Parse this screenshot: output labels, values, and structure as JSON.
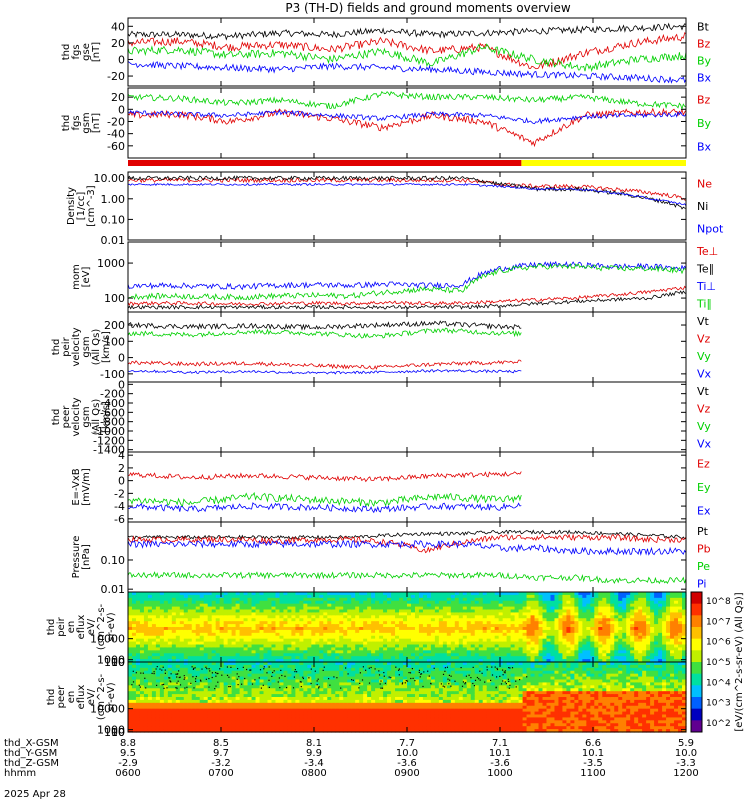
{
  "title": "P3 (TH-D) fields and ground moments overview",
  "colors": {
    "black": "#000000",
    "red": "#e00000",
    "green": "#00d000",
    "blue": "#0000ff",
    "yellow": "#ffff00",
    "barred": "#e00000"
  },
  "chart_data": [
    {
      "id": "fgs_gse",
      "type": "line",
      "ylabel": [
        "thd",
        "fgs",
        "gse",
        "[nT]"
      ],
      "ylim": [
        -32,
        50
      ],
      "ticks": [
        "40",
        "20",
        "0",
        "-20"
      ],
      "tickvals": [
        40,
        20,
        0,
        -20
      ],
      "series": [
        {
          "name": "Bt",
          "color": "black",
          "base": [
            30,
            30,
            28,
            32,
            30,
            35,
            30,
            32,
            34,
            36,
            38,
            40
          ],
          "noise": 4
        },
        {
          "name": "Bz",
          "color": "red",
          "base": [
            20,
            22,
            15,
            18,
            12,
            22,
            10,
            15,
            -10,
            8,
            20,
            28
          ],
          "noise": 5
        },
        {
          "name": "By",
          "color": "green",
          "base": [
            10,
            12,
            5,
            8,
            0,
            10,
            -5,
            15,
            0,
            -10,
            0,
            5
          ],
          "noise": 5
        },
        {
          "name": "Bx",
          "color": "blue",
          "base": [
            -5,
            -8,
            -10,
            -12,
            -8,
            -10,
            -12,
            -15,
            -18,
            -20,
            -22,
            -25
          ],
          "noise": 4
        }
      ]
    },
    {
      "id": "fgs_gsm",
      "type": "line",
      "ylabel": [
        "thd",
        "fgs",
        "gsm",
        "[nT]"
      ],
      "ylim": [
        -80,
        35
      ],
      "ticks": [
        "20",
        "0",
        "-20",
        "-40",
        "-60"
      ],
      "tickvals": [
        20,
        0,
        -20,
        -40,
        -60
      ],
      "series": [
        {
          "name": "Bz",
          "color": "red",
          "base": [
            -10,
            -8,
            -20,
            -5,
            -15,
            -30,
            -10,
            -20,
            -55,
            -10,
            -5,
            -5
          ],
          "noise": 6
        },
        {
          "name": "By",
          "color": "green",
          "base": [
            20,
            18,
            10,
            15,
            5,
            25,
            20,
            20,
            15,
            20,
            10,
            5
          ],
          "noise": 5
        },
        {
          "name": "Bx",
          "color": "blue",
          "base": [
            -5,
            -8,
            -10,
            -5,
            -10,
            -15,
            -8,
            -10,
            -20,
            -12,
            -10,
            -8
          ],
          "noise": 4
        }
      ]
    },
    {
      "id": "density",
      "type": "line",
      "log": true,
      "ylabel": [
        "Density",
        "[1/cc]",
        "[cm^-3]"
      ],
      "ylim": [
        0.01,
        20
      ],
      "ticks": [
        "10.00",
        "1.00",
        "0.10",
        "0.01"
      ],
      "tickvals": [
        10,
        1,
        0.1,
        0.01
      ],
      "series": [
        {
          "name": "Ne",
          "color": "red",
          "base": [
            8,
            8,
            8,
            8,
            8,
            8,
            8,
            8,
            8,
            8,
            5,
            4,
            4,
            3,
            2,
            1
          ],
          "noise": 0.1
        },
        {
          "name": "Ni",
          "color": "black",
          "base": [
            10,
            10,
            10,
            10,
            10,
            10,
            10,
            10,
            10,
            10,
            5,
            3,
            3,
            2,
            1,
            0.3
          ],
          "noise": 0.1
        },
        {
          "name": "Npot",
          "color": "blue",
          "base": [
            5,
            5,
            5,
            5,
            5,
            5,
            5,
            5,
            5,
            5,
            4,
            3,
            3,
            2,
            1,
            0.5
          ],
          "noise": 0.05
        }
      ]
    },
    {
      "id": "temp",
      "type": "line",
      "log": true,
      "ylabel": [
        "mom",
        "[eV]"
      ],
      "ylim": [
        40,
        4000
      ],
      "ticks": [
        "1000",
        "100"
      ],
      "tickvals": [
        1000,
        100
      ],
      "series": [
        {
          "name": "Te⊥",
          "color": "red",
          "base": [
            70,
            72,
            70,
            68,
            70,
            72,
            70,
            75,
            70,
            72,
            80,
            90,
            100,
            120,
            150,
            200
          ],
          "noise": 0.05
        },
        {
          "name": "Te∥",
          "color": "black",
          "base": [
            55,
            55,
            55,
            55,
            55,
            55,
            55,
            55,
            55,
            55,
            60,
            70,
            80,
            90,
            100,
            150
          ],
          "noise": 0.05
        },
        {
          "name": "Ti⊥",
          "color": "blue",
          "base": [
            220,
            230,
            220,
            210,
            230,
            240,
            230,
            250,
            230,
            240,
            700,
            900,
            900,
            800,
            800,
            700
          ],
          "noise": 0.08
        },
        {
          "name": "Ti∥",
          "color": "green",
          "base": [
            110,
            115,
            110,
            105,
            115,
            120,
            115,
            150,
            180,
            160,
            600,
            800,
            800,
            700,
            700,
            600
          ],
          "noise": 0.08
        }
      ]
    },
    {
      "id": "peir_v",
      "type": "line",
      "ylabel": [
        "thd",
        "peir",
        "velocity",
        "gsm",
        "(All Qs)",
        "[km/s]"
      ],
      "ylim": [
        -150,
        280
      ],
      "ticks": [
        "200",
        "100",
        "0",
        "-100"
      ],
      "tickvals": [
        200,
        100,
        0,
        -100
      ],
      "series": [
        {
          "name": "Vt",
          "color": "black",
          "base": [
            200,
            190,
            195,
            185,
            200,
            210,
            190,
            180,
            200,
            210
          ],
          "noise": 15
        },
        {
          "name": "Vz",
          "color": "red",
          "base": [
            -30,
            -40,
            -35,
            -50,
            -60,
            -40,
            -30,
            -20,
            20,
            -20
          ],
          "noise": 12
        },
        {
          "name": "Vy",
          "color": "green",
          "base": [
            150,
            140,
            160,
            150,
            130,
            170,
            150,
            140,
            120,
            130
          ],
          "noise": 15
        },
        {
          "name": "Vx",
          "color": "blue",
          "base": [
            -80,
            -90,
            -85,
            -95,
            -90,
            -80,
            -85,
            -90,
            -100,
            -95
          ],
          "noise": 8
        }
      ]
    },
    {
      "id": "peer_v",
      "type": "line",
      "ylabel": [
        "thd",
        "peer",
        "velocity",
        "gsm",
        "(All Qs)",
        "[km/s]"
      ],
      "ylim": [
        -1450,
        50
      ],
      "ticks": [
        "0",
        "-200",
        "-400",
        "-600",
        "-800",
        "-1000",
        "-1200",
        "-1400"
      ],
      "tickvals": [
        0,
        -200,
        -400,
        -600,
        -800,
        -1000,
        -1200,
        -1400
      ],
      "series": [
        {
          "name": "Vt",
          "color": "black"
        },
        {
          "name": "Vz",
          "color": "red"
        },
        {
          "name": "Vy",
          "color": "green"
        },
        {
          "name": "Vx",
          "color": "blue"
        }
      ]
    },
    {
      "id": "efield",
      "type": "line",
      "ylabel": [
        "E=-VxB",
        "[mV/m]"
      ],
      "ylim": [
        -6.5,
        4.5
      ],
      "ticks": [
        "4",
        "2",
        "0",
        "-2",
        "-4",
        "-6"
      ],
      "tickvals": [
        4,
        2,
        0,
        -2,
        -4,
        -6
      ],
      "series": [
        {
          "name": "Ez",
          "color": "red",
          "base": [
            1,
            0.5,
            0.8,
            0.5,
            0.2,
            0.8,
            1,
            1.2,
            2.5,
            1
          ],
          "noise": 0.4
        },
        {
          "name": "Ey",
          "color": "green",
          "base": [
            -3,
            -3.5,
            -2.5,
            -3,
            -3.5,
            -2.5,
            -3,
            -2,
            0,
            -3
          ],
          "noise": 0.6
        },
        {
          "name": "Ex",
          "color": "blue",
          "base": [
            -4,
            -4.5,
            -4,
            -4.2,
            -4.5,
            -4,
            -4.2,
            -3,
            -2,
            -4
          ],
          "noise": 0.5
        }
      ]
    },
    {
      "id": "pressure",
      "type": "line",
      "log": true,
      "ylabel": [
        "Pressure",
        "[nPa]"
      ],
      "ylim": [
        0.008,
        2
      ],
      "ticks": [
        "0.10",
        "0.01"
      ],
      "tickvals": [
        0.1,
        0.01
      ],
      "series": [
        {
          "name": "Pt",
          "color": "black",
          "base": [
            0.6,
            0.6,
            0.6,
            0.6,
            0.6,
            0.6,
            0.6,
            0.7,
            0.8,
            0.8,
            0.9,
            0.9,
            0.9,
            0.8,
            0.7,
            0.6
          ],
          "noise": 0.06
        },
        {
          "name": "Pb",
          "color": "red",
          "base": [
            0.5,
            0.5,
            0.5,
            0.5,
            0.45,
            0.5,
            0.5,
            0.4,
            0.2,
            0.4,
            0.6,
            0.6,
            0.6,
            0.6,
            0.5,
            0.5
          ],
          "noise": 0.1
        },
        {
          "name": "Pe",
          "color": "green",
          "base": [
            0.03,
            0.03,
            0.03,
            0.03,
            0.03,
            0.03,
            0.03,
            0.03,
            0.03,
            0.03,
            0.03,
            0.025,
            0.025,
            0.02,
            0.02,
            0.02
          ],
          "noise": 0.1
        },
        {
          "name": "Pi",
          "color": "blue",
          "base": [
            0.35,
            0.35,
            0.35,
            0.35,
            0.35,
            0.35,
            0.35,
            0.35,
            0.35,
            0.35,
            0.25,
            0.25,
            0.2,
            0.2,
            0.2,
            0.2
          ],
          "noise": 0.12
        }
      ]
    },
    {
      "id": "peir_spec",
      "type": "heatmap",
      "ylabel": [
        "thd",
        "peir",
        "en",
        "eflux",
        "eV/",
        "(cm^2-s-",
        "sr-eV)"
      ],
      "ylim": [
        7,
        30000
      ],
      "ticks": [
        "10000",
        "1000",
        "100",
        "10"
      ],
      "tickvals": [
        10000,
        1000,
        100,
        10
      ]
    },
    {
      "id": "peer_spec",
      "type": "heatmap",
      "ylabel": [
        "thd",
        "peer",
        "en",
        "eflux",
        "eV/",
        "(cm^2-s-",
        "sr-eV)"
      ],
      "ylim": [
        7,
        30000
      ],
      "ticks": [
        "10000",
        "1000",
        "100",
        "10"
      ],
      "tickvals": [
        10000,
        1000,
        100,
        10
      ]
    }
  ],
  "colorbar": {
    "label": "[eV/(cm^2-s-sr-eV) (All Qs)]",
    "ticks": [
      "10^8",
      "10^7",
      "10^6",
      "10^5",
      "10^4",
      "10^3",
      "10^2"
    ]
  },
  "xaxis": {
    "rows": [
      {
        "label": "thd_X-GSM",
        "values": [
          "8.8",
          "8.5",
          "8.1",
          "7.7",
          "7.1",
          "6.6",
          "5.9"
        ]
      },
      {
        "label": "thd_Y-GSM",
        "values": [
          "9.5",
          "9.7",
          "9.9",
          "10.0",
          "10.1",
          "10.1",
          "10.0"
        ]
      },
      {
        "label": "thd_Z-GSM",
        "values": [
          "-2.9",
          "-3.2",
          "-3.4",
          "-3.6",
          "-3.6",
          "-3.5",
          "-3.3"
        ]
      },
      {
        "label": "hhmm",
        "values": [
          "0600",
          "0700",
          "0800",
          "0900",
          "1000",
          "1100",
          "1200"
        ]
      }
    ],
    "date": "2025 Apr 28"
  }
}
